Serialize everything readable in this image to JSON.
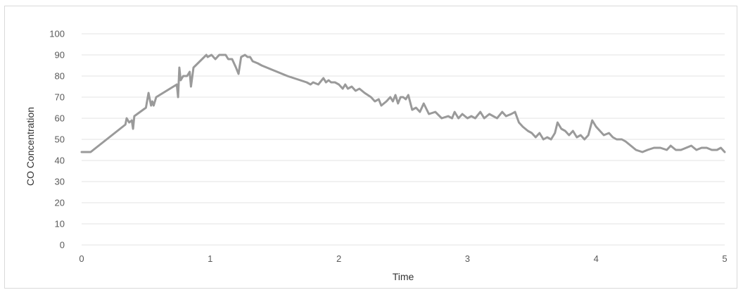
{
  "chart_data": {
    "type": "line",
    "title": "",
    "xlabel": "Time",
    "ylabel": "CO Concentration",
    "xlim": [
      0,
      5
    ],
    "ylim": [
      0,
      100
    ],
    "x_ticks": [
      "0",
      "1",
      "2",
      "3",
      "4",
      "5"
    ],
    "y_ticks": [
      "0",
      "10",
      "20",
      "30",
      "40",
      "50",
      "60",
      "70",
      "80",
      "90",
      "100"
    ],
    "grid": true,
    "legend": "none",
    "line_color": "#9a9a9a",
    "series": [
      {
        "points": [
          [
            0.0,
            44
          ],
          [
            0.07,
            44
          ],
          [
            0.34,
            57
          ],
          [
            0.35,
            60
          ],
          [
            0.37,
            58
          ],
          [
            0.39,
            59
          ],
          [
            0.4,
            55
          ],
          [
            0.41,
            61
          ],
          [
            0.5,
            65
          ],
          [
            0.52,
            72
          ],
          [
            0.54,
            66
          ],
          [
            0.55,
            68
          ],
          [
            0.56,
            66
          ],
          [
            0.58,
            70
          ],
          [
            0.74,
            76
          ],
          [
            0.75,
            70
          ],
          [
            0.76,
            84
          ],
          [
            0.77,
            78
          ],
          [
            0.79,
            80
          ],
          [
            0.82,
            80
          ],
          [
            0.84,
            82
          ],
          [
            0.85,
            75
          ],
          [
            0.87,
            84
          ],
          [
            0.97,
            90
          ],
          [
            0.98,
            89
          ],
          [
            1.01,
            90
          ],
          [
            1.04,
            88
          ],
          [
            1.07,
            90
          ],
          [
            1.12,
            90
          ],
          [
            1.14,
            88
          ],
          [
            1.17,
            88
          ],
          [
            1.2,
            84
          ],
          [
            1.22,
            81
          ],
          [
            1.24,
            89
          ],
          [
            1.27,
            90
          ],
          [
            1.29,
            89
          ],
          [
            1.31,
            89
          ],
          [
            1.33,
            87
          ],
          [
            1.37,
            86
          ],
          [
            1.4,
            85
          ],
          [
            1.44,
            84
          ],
          [
            1.48,
            83
          ],
          [
            1.52,
            82
          ],
          [
            1.56,
            81
          ],
          [
            1.6,
            80
          ],
          [
            1.65,
            79
          ],
          [
            1.7,
            78
          ],
          [
            1.75,
            77
          ],
          [
            1.78,
            76
          ],
          [
            1.8,
            77
          ],
          [
            1.84,
            76
          ],
          [
            1.88,
            79
          ],
          [
            1.9,
            77
          ],
          [
            1.92,
            78
          ],
          [
            1.94,
            77
          ],
          [
            1.97,
            77
          ],
          [
            2.0,
            76
          ],
          [
            2.03,
            74
          ],
          [
            2.05,
            76
          ],
          [
            2.07,
            74
          ],
          [
            2.1,
            75
          ],
          [
            2.13,
            73
          ],
          [
            2.16,
            74
          ],
          [
            2.2,
            72
          ],
          [
            2.25,
            70
          ],
          [
            2.28,
            68
          ],
          [
            2.31,
            69
          ],
          [
            2.33,
            66
          ],
          [
            2.37,
            68
          ],
          [
            2.4,
            70
          ],
          [
            2.42,
            68
          ],
          [
            2.44,
            71
          ],
          [
            2.46,
            67
          ],
          [
            2.48,
            70
          ],
          [
            2.5,
            70
          ],
          [
            2.52,
            69
          ],
          [
            2.54,
            71
          ],
          [
            2.57,
            64
          ],
          [
            2.6,
            65
          ],
          [
            2.63,
            63
          ],
          [
            2.66,
            67
          ],
          [
            2.7,
            62
          ],
          [
            2.75,
            63
          ],
          [
            2.8,
            60
          ],
          [
            2.85,
            61
          ],
          [
            2.88,
            60
          ],
          [
            2.9,
            63
          ],
          [
            2.93,
            60
          ],
          [
            2.96,
            62
          ],
          [
            3.0,
            60
          ],
          [
            3.03,
            61
          ],
          [
            3.06,
            60
          ],
          [
            3.1,
            63
          ],
          [
            3.13,
            60
          ],
          [
            3.17,
            62
          ],
          [
            3.2,
            61
          ],
          [
            3.23,
            60
          ],
          [
            3.27,
            63
          ],
          [
            3.3,
            61
          ],
          [
            3.34,
            62
          ],
          [
            3.37,
            63
          ],
          [
            3.4,
            58
          ],
          [
            3.43,
            56
          ],
          [
            3.47,
            54
          ],
          [
            3.5,
            53
          ],
          [
            3.53,
            51
          ],
          [
            3.56,
            53
          ],
          [
            3.59,
            50
          ],
          [
            3.62,
            51
          ],
          [
            3.65,
            50
          ],
          [
            3.68,
            53
          ],
          [
            3.7,
            58
          ],
          [
            3.73,
            55
          ],
          [
            3.76,
            54
          ],
          [
            3.79,
            52
          ],
          [
            3.82,
            54
          ],
          [
            3.85,
            51
          ],
          [
            3.88,
            52
          ],
          [
            3.91,
            50
          ],
          [
            3.94,
            52
          ],
          [
            3.97,
            59
          ],
          [
            4.0,
            56
          ],
          [
            4.03,
            54
          ],
          [
            4.06,
            52
          ],
          [
            4.1,
            53
          ],
          [
            4.13,
            51
          ],
          [
            4.16,
            50
          ],
          [
            4.2,
            50
          ],
          [
            4.23,
            49
          ],
          [
            4.27,
            47
          ],
          [
            4.31,
            45
          ],
          [
            4.36,
            44
          ],
          [
            4.4,
            45
          ],
          [
            4.45,
            46
          ],
          [
            4.5,
            46
          ],
          [
            4.55,
            45
          ],
          [
            4.58,
            47
          ],
          [
            4.62,
            45
          ],
          [
            4.66,
            45
          ],
          [
            4.7,
            46
          ],
          [
            4.74,
            47
          ],
          [
            4.78,
            45
          ],
          [
            4.82,
            46
          ],
          [
            4.86,
            46
          ],
          [
            4.9,
            45
          ],
          [
            4.94,
            45
          ],
          [
            4.97,
            46
          ],
          [
            5.0,
            44
          ]
        ]
      }
    ]
  }
}
